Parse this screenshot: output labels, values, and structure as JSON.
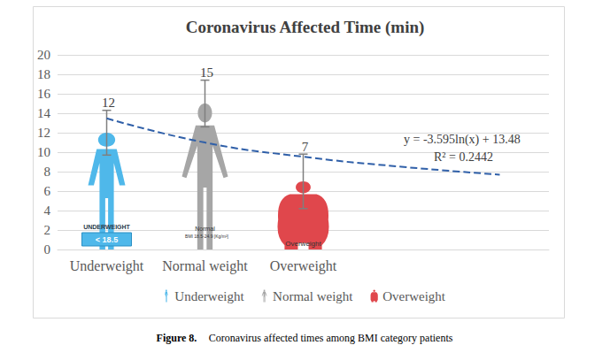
{
  "chart_data": {
    "type": "pictorial_bar",
    "title": "Coronavirus Affected Time (min)",
    "categories": [
      "Underweight",
      "Normal weight",
      "Overweight",
      null,
      null
    ],
    "series": [
      {
        "name": "Underweight",
        "color": "#4fb8ea",
        "marker": "underweight",
        "values": [
          12,
          null,
          null,
          null,
          null
        ],
        "errors": [
          2.3,
          null,
          null,
          null,
          null
        ],
        "icon_labels": [
          "UNDERWEIGHT",
          "< 18.5"
        ]
      },
      {
        "name": "Normal weight",
        "color": "#a6a6a6",
        "marker": "normal",
        "values": [
          null,
          15,
          null,
          null,
          null
        ],
        "errors": [
          null,
          2.4,
          null,
          null,
          null
        ],
        "icon_labels": [
          "Normal",
          "BMI 18.5-24.9 [Kg/m²]"
        ]
      },
      {
        "name": "Overweight",
        "color": "#e0474c",
        "marker": "overweight",
        "values": [
          null,
          null,
          7,
          null,
          null
        ],
        "errors": [
          null,
          null,
          2.8,
          null,
          null
        ],
        "icon_labels": [
          "Overweight"
        ]
      }
    ],
    "trendline": {
      "type": "line",
      "color": "#2f5fa8",
      "line_style": "dashed",
      "values": [
        13.48,
        10.99,
        9.53,
        8.5,
        7.69
      ],
      "equation": "y = -3.595ln(x) + 13.48",
      "r_squared": "R² = 0.2442"
    },
    "ylim": [
      0,
      20
    ],
    "yticks": [
      0,
      2,
      4,
      6,
      8,
      10,
      12,
      14,
      16,
      18,
      20
    ],
    "grid": true,
    "legend": "bottom",
    "data_labels": true,
    "caption": {
      "label": "Figure 8.",
      "text": "Coronavirus affected times among BMI category patients"
    }
  }
}
